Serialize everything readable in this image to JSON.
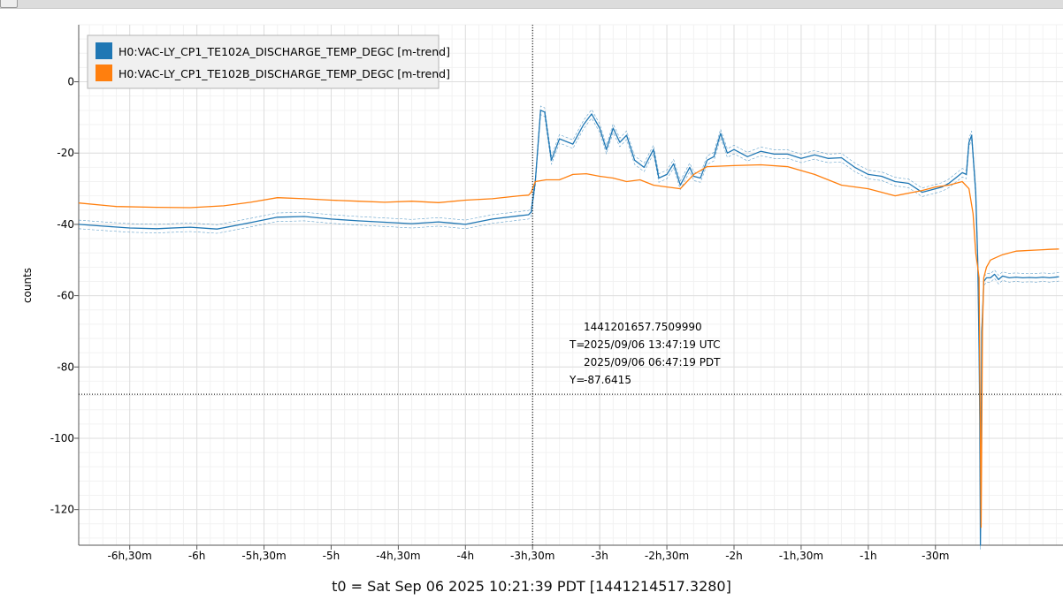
{
  "chart_data": {
    "type": "line",
    "ylabel": "counts",
    "xlabel": "t0 = Sat Sep 06 2025 10:21:39 PDT [1441214517.3280]",
    "x_unit": "hours relative to t0",
    "xlim": [
      -6.88,
      0.45
    ],
    "ylim": [
      -130,
      16
    ],
    "y_ticks": [
      0,
      -20,
      -40,
      -60,
      -80,
      -100,
      -120
    ],
    "y_tick_labels": [
      "0",
      "-20",
      "-40",
      "-60",
      "-80",
      "-100",
      "-120"
    ],
    "x_ticks": [
      -6.5,
      -6,
      -5.5,
      -5,
      -4.5,
      -4,
      -3.5,
      -3,
      -2.5,
      -2,
      -1.5,
      -1,
      -0.5
    ],
    "x_tick_labels": [
      "-6h,30m",
      "-6h",
      "-5h,30m",
      "-5h",
      "-4h,30m",
      "-4h",
      "-3h,30m",
      "-3h",
      "-2h,30m",
      "-2h",
      "-1h,30m",
      "-1h",
      "-30m"
    ],
    "grid": true,
    "legend_position": "top-left",
    "series": [
      {
        "name": "H0:VAC-LY_CP1_TE102A_DISCHARGE_TEMP_DEGC [m-trend]",
        "color": "#1f77b4",
        "x": [
          -6.88,
          -6.7,
          -6.5,
          -6.3,
          -6.05,
          -5.85,
          -5.6,
          -5.4,
          -5.2,
          -5.0,
          -4.8,
          -4.6,
          -4.4,
          -4.2,
          -4.0,
          -3.8,
          -3.6,
          -3.53,
          -3.51,
          -3.48,
          -3.44,
          -3.41,
          -3.36,
          -3.3,
          -3.2,
          -3.12,
          -3.06,
          -3.0,
          -2.95,
          -2.9,
          -2.85,
          -2.8,
          -2.74,
          -2.67,
          -2.6,
          -2.56,
          -2.5,
          -2.45,
          -2.4,
          -2.33,
          -2.3,
          -2.25,
          -2.2,
          -2.15,
          -2.1,
          -2.05,
          -2.0,
          -1.9,
          -1.8,
          -1.7,
          -1.6,
          -1.5,
          -1.4,
          -1.3,
          -1.2,
          -1.1,
          -1.0,
          -0.9,
          -0.8,
          -0.7,
          -0.6,
          -0.5,
          -0.45,
          -0.4,
          -0.35,
          -0.3,
          -0.27,
          -0.25,
          -0.23,
          -0.2,
          -0.185,
          -0.175,
          -0.17,
          -0.165,
          -0.16,
          -0.155,
          -0.15,
          -0.14,
          -0.12,
          -0.09,
          -0.06,
          -0.03,
          0.0,
          0.05,
          0.1,
          0.15,
          0.2,
          0.25,
          0.3,
          0.35,
          0.42
        ],
        "y": [
          -40,
          -40.5,
          -41,
          -41.2,
          -40.8,
          -41.3,
          -39.5,
          -38,
          -37.8,
          -38.5,
          -39,
          -39.4,
          -39.8,
          -39.3,
          -40,
          -38.5,
          -37.6,
          -37.3,
          -36.5,
          -28,
          -8,
          -8.5,
          -22,
          -16,
          -17.5,
          -12,
          -9,
          -13,
          -19,
          -13,
          -17,
          -15,
          -22,
          -24,
          -19,
          -27,
          -26,
          -23,
          -29,
          -24,
          -26.5,
          -27,
          -22,
          -21,
          -14.5,
          -20,
          -19,
          -21,
          -19.5,
          -20.3,
          -20.3,
          -21.5,
          -20.5,
          -21.5,
          -21.3,
          -24,
          -26,
          -26.5,
          -28,
          -28.5,
          -31,
          -30,
          -29.5,
          -28.5,
          -27,
          -25.5,
          -26,
          -17,
          -15,
          -31,
          -50,
          -75,
          -95,
          -130,
          -110,
          -70,
          -66,
          -56,
          -55,
          -55,
          -54,
          -55.5,
          -54.5,
          -55,
          -54.8,
          -55,
          -54.9,
          -55,
          -54.8,
          -55,
          -54.7
        ]
      },
      {
        "name": "H0:VAC-LY_CP1_TE102B_DISCHARGE_TEMP_DEGC [m-trend]",
        "color": "#ff7f0e",
        "x": [
          -6.88,
          -6.6,
          -6.3,
          -6.05,
          -5.8,
          -5.6,
          -5.4,
          -5.2,
          -5.0,
          -4.8,
          -4.6,
          -4.4,
          -4.2,
          -4.0,
          -3.8,
          -3.6,
          -3.53,
          -3.51,
          -3.48,
          -3.4,
          -3.3,
          -3.2,
          -3.1,
          -3.0,
          -2.9,
          -2.8,
          -2.7,
          -2.6,
          -2.5,
          -2.4,
          -2.3,
          -2.2,
          -2.0,
          -1.8,
          -1.6,
          -1.4,
          -1.2,
          -1.0,
          -0.8,
          -0.6,
          -0.5,
          -0.4,
          -0.3,
          -0.25,
          -0.22,
          -0.2,
          -0.185,
          -0.175,
          -0.17,
          -0.165,
          -0.16,
          -0.155,
          -0.15,
          -0.14,
          -0.12,
          -0.09,
          -0.06,
          -0.03,
          0.0,
          0.05,
          0.1,
          0.15,
          0.2,
          0.25,
          0.3,
          0.35,
          0.42
        ],
        "y": [
          -34,
          -35,
          -35.2,
          -35.3,
          -34.8,
          -33.8,
          -32.5,
          -32.8,
          -33.2,
          -33.5,
          -33.8,
          -33.5,
          -33.9,
          -33.2,
          -32.8,
          -32,
          -31.8,
          -31,
          -28,
          -27.5,
          -27.5,
          -26,
          -25.8,
          -26.5,
          -27,
          -28,
          -27.5,
          -29,
          -29.5,
          -30,
          -26,
          -23.8,
          -23.5,
          -23.3,
          -23.8,
          -26,
          -29,
          -30,
          -32,
          -30.5,
          -29.5,
          -29,
          -28,
          -30,
          -37,
          -48,
          -52,
          -55,
          -80,
          -100,
          -125,
          -100,
          -70,
          -55,
          -52,
          -50,
          -49.5,
          -49,
          -48.5,
          -48,
          -47.5,
          -47.4,
          -47.3,
          -47.2,
          -47.1,
          -47,
          -46.9
        ]
      }
    ],
    "cursor": {
      "x": -3.5,
      "y": -87.6415,
      "gps_label": "1441201657.7509990",
      "t_prefix": "T=",
      "utc_label": "2025/09/06 13:47:19 UTC",
      "pdt_label": "2025/09/06 06:47:19 PDT",
      "y_prefix": "Y=",
      "y_value_label": "-87.6415"
    }
  }
}
